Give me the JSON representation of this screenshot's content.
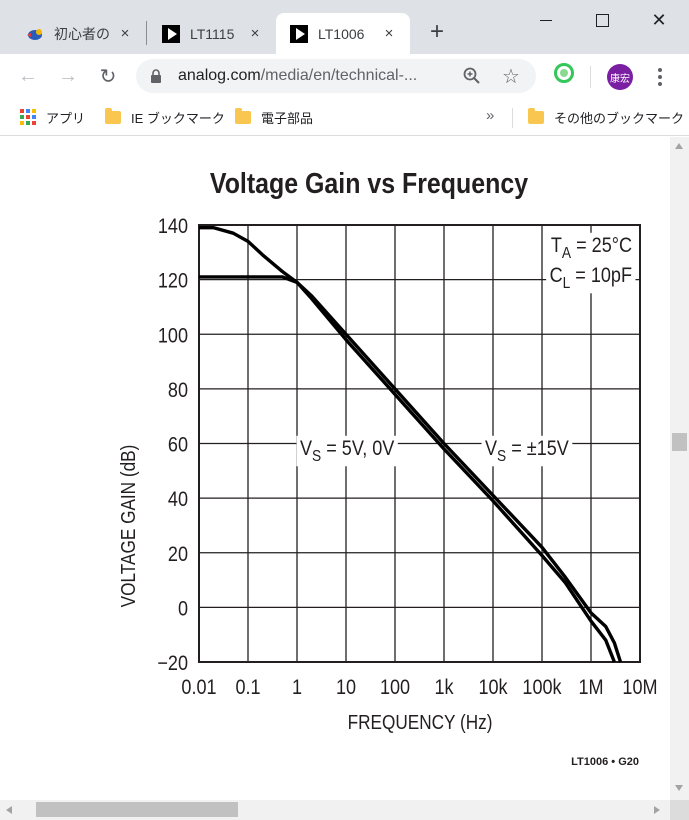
{
  "browser": {
    "tabs": [
      {
        "title": "初心者の",
        "favicon": "bird-favicon-icon",
        "active": false
      },
      {
        "title": "LT1115",
        "favicon": "analog-play-icon",
        "active": false
      },
      {
        "title": "LT1006",
        "favicon": "analog-play-icon",
        "active": true
      }
    ],
    "url_host": "analog.com",
    "url_path": "/media/en/technical-...",
    "avatar_label": "康宏",
    "bookmarks": {
      "apps": "アプリ",
      "items": [
        "IE ブックマーク",
        "電子部品"
      ],
      "overflow": "»",
      "other": "その他のブックマーク"
    }
  },
  "icons": {
    "close_tab": "×",
    "new_tab": "+",
    "back": "←",
    "forward": "→",
    "reload": "↻",
    "star": "☆",
    "window_close": "✕"
  },
  "colors": {
    "titlebar": "#dee1e6",
    "avatar": "#7b1fa2",
    "curve": "#000000"
  },
  "chart_data": {
    "type": "line",
    "title": "Voltage Gain vs Frequency",
    "xlabel": "FREQUENCY (Hz)",
    "ylabel": "VOLTAGE GAIN (dB)",
    "x_scale": "log",
    "xlim": [
      0.01,
      10000000
    ],
    "ylim": [
      -20,
      140
    ],
    "x_ticks": [
      0.01,
      0.1,
      1,
      10,
      100,
      1000,
      10000,
      100000,
      1000000,
      10000000
    ],
    "x_tick_labels": [
      "0.01",
      "0.1",
      "1",
      "10",
      "100",
      "1k",
      "10k",
      "100k",
      "1M",
      "10M"
    ],
    "y_ticks": [
      -20,
      0,
      20,
      40,
      60,
      80,
      100,
      120,
      140
    ],
    "y_tick_labels": [
      "−20",
      "0",
      "20",
      "40",
      "60",
      "80",
      "100",
      "120",
      "140"
    ],
    "grid": true,
    "conditions": [
      {
        "sym": "T",
        "sub": "A",
        "rest": " = 25°C"
      },
      {
        "sym": "C",
        "sub": "L",
        "rest": " = 10pF"
      }
    ],
    "series": [
      {
        "label_sym": "V",
        "label_sub": "S",
        "label_rest": " = ±15V",
        "x": [
          0.01,
          0.02,
          0.05,
          0.1,
          0.2,
          0.5,
          1,
          2,
          10,
          100,
          1000,
          10000,
          100000,
          300000,
          1000000,
          2000000,
          3000000,
          4000000
        ],
        "y": [
          139,
          139,
          137,
          134,
          129,
          123,
          119,
          114,
          100,
          80,
          60,
          41,
          22,
          11,
          -2,
          -7,
          -13,
          -20
        ]
      },
      {
        "label_sym": "V",
        "label_sub": "S",
        "label_rest": " = 5V, 0V",
        "x": [
          0.01,
          0.1,
          0.5,
          1,
          2,
          10,
          100,
          1000,
          10000,
          100000,
          300000,
          1000000,
          2000000,
          3000000
        ],
        "y": [
          121,
          121,
          121,
          119,
          113,
          98,
          78,
          58,
          39,
          19,
          9,
          -5,
          -12,
          -20
        ]
      }
    ],
    "footnote": "LT1006 • G20"
  }
}
